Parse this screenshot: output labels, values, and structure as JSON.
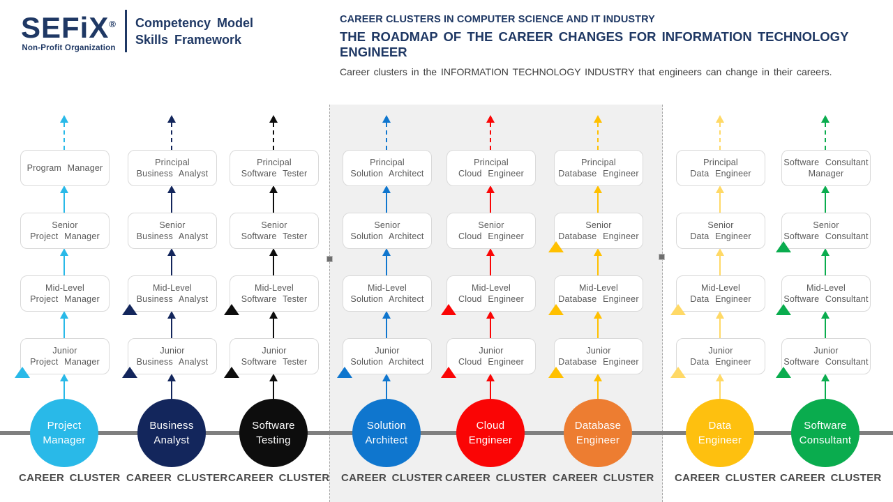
{
  "header": {
    "logo": {
      "name": "SEFiX",
      "registered": "®",
      "tagline": "Non-Profit Organization",
      "line1": "Competency Model",
      "line2": "Skills Framework"
    },
    "title_line1": "CAREER CLUSTERS IN COMPUTER SCIENCE AND IT INDUSTRY",
    "title_line2": "THE ROADMAP OF THE CAREER CHANGES FOR INFORMATION TECHNOLOGY ENGINEER",
    "subtitle": "Career clusters in the INFORMATION TECHNOLOGY INDUSTRY that engineers can change in their careers."
  },
  "diagram": {
    "cluster_label": "CAREER CLUSTER",
    "highlighted_columns": [
      "solution-architect",
      "cloud-engineer",
      "database-engineer"
    ],
    "columns": [
      {
        "id": "project-manager",
        "color": "#29B9E8",
        "arrow_color": "#29B9E8",
        "circle_lines": [
          "Project",
          "Manager"
        ],
        "boxes": [
          {
            "lines": [
              "Program Manager"
            ]
          },
          {
            "lines": [
              "Senior",
              "Project Manager"
            ]
          },
          {
            "lines": [
              "Mid-Level",
              "Project Manager"
            ]
          },
          {
            "lines": [
              "Junior",
              "Project Manager"
            ],
            "marker": true
          }
        ]
      },
      {
        "id": "business-analyst",
        "color": "#13265C",
        "arrow_color": "#13265C",
        "circle_lines": [
          "Business",
          "Analyst"
        ],
        "boxes": [
          {
            "lines": [
              "Principal",
              "Business Analyst"
            ]
          },
          {
            "lines": [
              "Senior",
              "Business Analyst"
            ]
          },
          {
            "lines": [
              "Mid-Level",
              "Business Analyst"
            ],
            "marker": true
          },
          {
            "lines": [
              "Junior",
              "Business Analyst"
            ],
            "marker": true
          }
        ]
      },
      {
        "id": "software-testing",
        "color": "#0D0D0D",
        "arrow_color": "#0D0D0D",
        "circle_lines": [
          "Software",
          "Testing"
        ],
        "boxes": [
          {
            "lines": [
              "Principal",
              "Software Tester"
            ]
          },
          {
            "lines": [
              "Senior",
              "Software Tester"
            ]
          },
          {
            "lines": [
              "Mid-Level",
              "Software Tester"
            ],
            "marker": true
          },
          {
            "lines": [
              "Junior",
              "Software Tester"
            ],
            "marker": true
          }
        ]
      },
      {
        "id": "solution-architect",
        "color": "#0F76CE",
        "arrow_color": "#0F76CE",
        "circle_lines": [
          "Solution",
          "Architect"
        ],
        "boxes": [
          {
            "lines": [
              "Principal",
              "Solution Architect"
            ]
          },
          {
            "lines": [
              "Senior",
              "Solution Architect"
            ]
          },
          {
            "lines": [
              "Mid-Level",
              "Solution Architect"
            ]
          },
          {
            "lines": [
              "Junior",
              "Solution Architect"
            ],
            "marker": true
          }
        ]
      },
      {
        "id": "cloud-engineer",
        "color": "#FA0505",
        "arrow_color": "#FA0505",
        "circle_lines": [
          "Cloud",
          "Engineer"
        ],
        "boxes": [
          {
            "lines": [
              "Principal",
              "Cloud Engineer"
            ]
          },
          {
            "lines": [
              "Senior",
              "Cloud Engineer"
            ]
          },
          {
            "lines": [
              "Mid-Level",
              "Cloud Engineer"
            ],
            "marker": true
          },
          {
            "lines": [
              "Junior",
              "Cloud Engineer"
            ],
            "marker": true
          }
        ]
      },
      {
        "id": "database-engineer",
        "color": "#ED7D31",
        "arrow_color": "#FFC000",
        "circle_lines": [
          "Database",
          "Engineer"
        ],
        "boxes": [
          {
            "lines": [
              "Principal",
              "Database Engineer"
            ]
          },
          {
            "lines": [
              "Senior",
              "Database Engineer"
            ],
            "marker": true
          },
          {
            "lines": [
              "Mid-Level",
              "Database Engineer"
            ],
            "marker": true
          },
          {
            "lines": [
              "Junior",
              "Database Engineer"
            ],
            "marker": true
          }
        ]
      },
      {
        "id": "data-engineer",
        "color": "#FEC00F",
        "arrow_color": "#FFD966",
        "circle_lines": [
          "Data",
          "Engineer"
        ],
        "boxes": [
          {
            "lines": [
              "Principal",
              "Data Engineer"
            ]
          },
          {
            "lines": [
              "Senior",
              "Data Engineer"
            ]
          },
          {
            "lines": [
              "Mid-Level",
              "Data Engineer"
            ],
            "marker": true
          },
          {
            "lines": [
              "Junior",
              "Data Engineer"
            ],
            "marker": true
          }
        ]
      },
      {
        "id": "software-consultant",
        "color": "#0AAC4E",
        "arrow_color": "#0AAC4E",
        "circle_lines": [
          "Software",
          "Consultant"
        ],
        "boxes": [
          {
            "lines": [
              "Software Consultant",
              "Manager"
            ]
          },
          {
            "lines": [
              "Senior",
              "Software Consultant"
            ],
            "marker": true
          },
          {
            "lines": [
              "Mid-Level",
              "Software Consultant"
            ],
            "marker": true
          },
          {
            "lines": [
              "Junior",
              "Software Consultant"
            ],
            "marker": true
          }
        ]
      }
    ]
  }
}
